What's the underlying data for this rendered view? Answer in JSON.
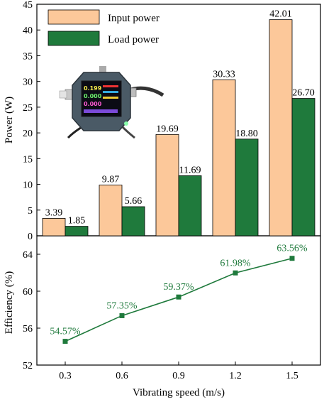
{
  "chart_data": [
    {
      "type": "bar",
      "categories": [
        "0.3",
        "0.6",
        "0.9",
        "1.2",
        "1.5"
      ],
      "series": [
        {
          "name": "Input power",
          "values": [
            3.39,
            9.87,
            19.69,
            30.33,
            42.01
          ],
          "labels": [
            "3.39",
            "9.87",
            "19.69",
            "30.33",
            "42.01"
          ],
          "color": "#fcc89a"
        },
        {
          "name": "Load power",
          "values": [
            1.85,
            5.66,
            11.69,
            18.8,
            26.7
          ],
          "labels": [
            "1.85",
            "5.66",
            "11.69",
            "18.80",
            "26.70"
          ],
          "color": "#1f7a3c"
        }
      ],
      "ylabel": "Power (W)",
      "ylim": [
        0,
        45
      ],
      "yticks": [
        "0",
        "5",
        "10",
        "15",
        "20",
        "25",
        "30",
        "35",
        "40",
        "45"
      ],
      "legend": "top-left",
      "inset": "photo of a USB power meter device",
      "device_readout": [
        "0.199",
        "0.000",
        "0.000"
      ]
    },
    {
      "type": "line",
      "x": [
        "0.3",
        "0.6",
        "0.9",
        "1.2",
        "1.5"
      ],
      "series": [
        {
          "values": [
            54.57,
            57.35,
            59.37,
            61.98,
            63.56
          ],
          "labels": [
            "54.57%",
            "57.35%",
            "59.37%",
            "61.98%",
            "63.56%"
          ],
          "color": "#1f7a3c"
        }
      ],
      "xlabel": "Vibrating speed (m/s)",
      "ylabel": "Efficiency (%)",
      "ylim": [
        52,
        66
      ],
      "yticks": [
        "52",
        "56",
        "60",
        "64"
      ]
    }
  ]
}
